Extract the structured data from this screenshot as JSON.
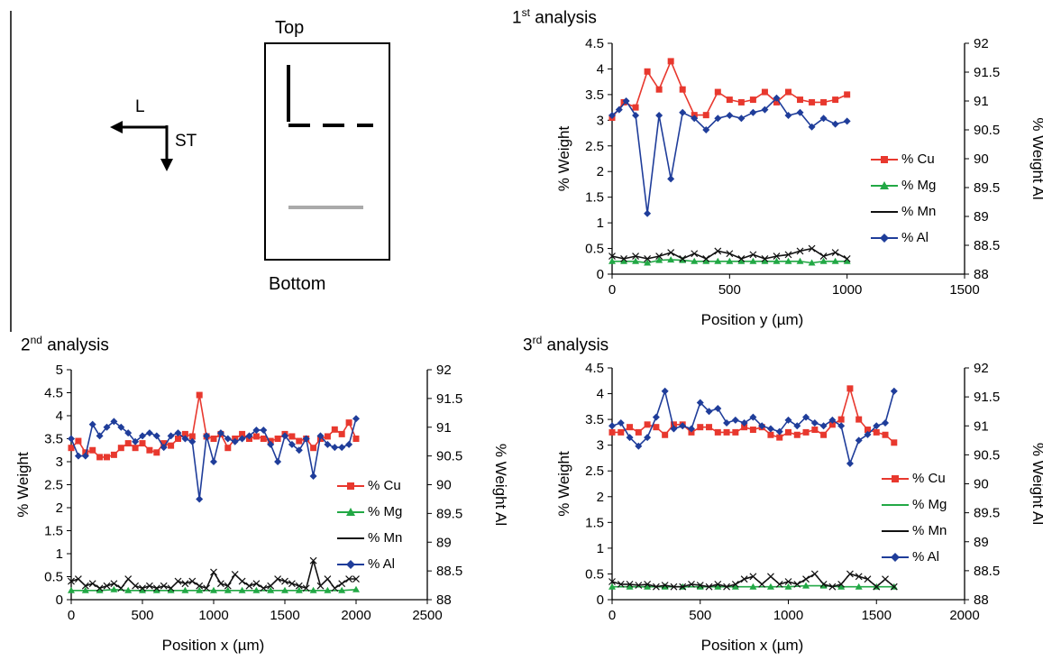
{
  "schematic": {
    "arrow_left_label": "L",
    "arrow_down_label": "ST",
    "top_label": "Top",
    "bottom_label": "Bottom"
  },
  "chart_data": [
    {
      "type": "line",
      "title_prefix": "1",
      "title_sup": "st",
      "title_suffix": " analysis",
      "xlabel": "Position y (µm)",
      "ylabel": "% Weight",
      "y2label": "% Weight Al",
      "xlim": [
        0,
        1500
      ],
      "xticks": [
        0,
        500,
        1000,
        1500
      ],
      "ylim": [
        0,
        4.5
      ],
      "yticks": [
        0,
        0.5,
        1,
        1.5,
        2,
        2.5,
        3,
        3.5,
        4,
        4.5
      ],
      "y2lim": [
        88,
        92
      ],
      "y2ticks": [
        88,
        88.5,
        89,
        89.5,
        90,
        90.5,
        91,
        91.5,
        92
      ],
      "series": [
        {
          "name": "% Cu",
          "axis": "left",
          "color": "#e8382e",
          "marker": "square",
          "x": [
            0,
            50,
            100,
            150,
            200,
            250,
            300,
            350,
            400,
            450,
            500,
            550,
            600,
            650,
            700,
            750,
            800,
            850,
            900,
            950,
            1000
          ],
          "values": [
            3.05,
            3.35,
            3.25,
            3.95,
            3.6,
            4.15,
            3.6,
            3.1,
            3.1,
            3.55,
            3.4,
            3.35,
            3.4,
            3.55,
            3.35,
            3.55,
            3.4,
            3.35,
            3.35,
            3.4,
            3.5
          ]
        },
        {
          "name": "% Mg",
          "axis": "left",
          "color": "#22a845",
          "marker": "triangle",
          "x": [
            0,
            50,
            100,
            150,
            200,
            250,
            300,
            350,
            400,
            450,
            500,
            550,
            600,
            650,
            700,
            750,
            800,
            850,
            900,
            950,
            1000
          ],
          "values": [
            0.25,
            0.25,
            0.25,
            0.22,
            0.27,
            0.28,
            0.27,
            0.25,
            0.25,
            0.25,
            0.25,
            0.25,
            0.25,
            0.25,
            0.25,
            0.25,
            0.25,
            0.22,
            0.25,
            0.25,
            0.25
          ]
        },
        {
          "name": "% Mn",
          "axis": "left",
          "color": "#111111",
          "marker": "cross",
          "x": [
            0,
            50,
            100,
            150,
            200,
            250,
            300,
            350,
            400,
            450,
            500,
            550,
            600,
            650,
            700,
            750,
            800,
            850,
            900,
            950,
            1000
          ],
          "values": [
            0.35,
            0.3,
            0.35,
            0.3,
            0.35,
            0.42,
            0.3,
            0.4,
            0.3,
            0.45,
            0.4,
            0.3,
            0.38,
            0.3,
            0.35,
            0.38,
            0.45,
            0.5,
            0.35,
            0.42,
            0.3
          ]
        },
        {
          "name": "% Al",
          "axis": "right",
          "color": "#1f3d9a",
          "marker": "diamond",
          "x": [
            0,
            30,
            60,
            100,
            150,
            200,
            250,
            300,
            350,
            400,
            450,
            500,
            550,
            600,
            650,
            700,
            750,
            800,
            850,
            900,
            950,
            1000
          ],
          "values": [
            90.75,
            90.85,
            91.0,
            90.75,
            89.05,
            90.75,
            89.65,
            90.8,
            90.7,
            90.5,
            90.7,
            90.75,
            90.7,
            90.8,
            90.85,
            91.05,
            90.75,
            90.8,
            90.55,
            90.7,
            90.6,
            90.65
          ]
        }
      ]
    },
    {
      "type": "line",
      "title_prefix": "2",
      "title_sup": "nd",
      "title_suffix": " analysis",
      "xlabel": "Position x (µm)",
      "ylabel": "% Weight",
      "y2label": "% Weight Al",
      "xlim": [
        0,
        2500
      ],
      "xticks": [
        0,
        500,
        1000,
        1500,
        2000,
        2500
      ],
      "ylim": [
        0,
        5
      ],
      "yticks": [
        0,
        0.5,
        1,
        1.5,
        2,
        2.5,
        3,
        3.5,
        4,
        4.5,
        5
      ],
      "y2lim": [
        88,
        92
      ],
      "y2ticks": [
        88,
        88.5,
        89,
        89.5,
        90,
        90.5,
        91,
        91.5,
        92
      ],
      "series": [
        {
          "name": "% Cu",
          "axis": "left",
          "color": "#e8382e",
          "marker": "square",
          "x": [
            0,
            50,
            100,
            150,
            200,
            250,
            300,
            350,
            400,
            450,
            500,
            550,
            600,
            650,
            700,
            750,
            800,
            850,
            900,
            950,
            1000,
            1050,
            1100,
            1150,
            1200,
            1250,
            1300,
            1350,
            1400,
            1450,
            1500,
            1550,
            1600,
            1650,
            1700,
            1750,
            1800,
            1850,
            1900,
            1950,
            2000
          ],
          "values": [
            3.3,
            3.45,
            3.2,
            3.25,
            3.1,
            3.1,
            3.15,
            3.3,
            3.4,
            3.3,
            3.4,
            3.25,
            3.2,
            3.4,
            3.35,
            3.5,
            3.6,
            3.55,
            4.45,
            3.55,
            3.5,
            3.6,
            3.3,
            3.5,
            3.6,
            3.5,
            3.55,
            3.5,
            3.45,
            3.5,
            3.6,
            3.55,
            3.45,
            3.5,
            3.3,
            3.5,
            3.55,
            3.7,
            3.6,
            3.85,
            3.5
          ]
        },
        {
          "name": "% Mg",
          "axis": "left",
          "color": "#22a845",
          "marker": "triangle",
          "x": [
            0,
            100,
            200,
            300,
            400,
            500,
            600,
            700,
            800,
            900,
            1000,
            1100,
            1200,
            1300,
            1400,
            1500,
            1600,
            1700,
            1800,
            1900,
            2000
          ],
          "values": [
            0.2,
            0.2,
            0.2,
            0.22,
            0.2,
            0.2,
            0.2,
            0.2,
            0.2,
            0.2,
            0.2,
            0.2,
            0.2,
            0.2,
            0.2,
            0.2,
            0.2,
            0.2,
            0.2,
            0.2,
            0.22
          ]
        },
        {
          "name": "% Mn",
          "axis": "left",
          "color": "#111111",
          "marker": "cross",
          "x": [
            0,
            50,
            100,
            150,
            200,
            250,
            300,
            350,
            400,
            450,
            500,
            550,
            600,
            650,
            700,
            750,
            800,
            850,
            900,
            950,
            1000,
            1050,
            1100,
            1150,
            1200,
            1250,
            1300,
            1350,
            1400,
            1450,
            1500,
            1550,
            1600,
            1650,
            1700,
            1750,
            1800,
            1850,
            1900,
            1950,
            2000
          ],
          "values": [
            0.4,
            0.45,
            0.3,
            0.35,
            0.25,
            0.3,
            0.35,
            0.25,
            0.45,
            0.3,
            0.25,
            0.3,
            0.25,
            0.3,
            0.25,
            0.4,
            0.35,
            0.4,
            0.3,
            0.25,
            0.6,
            0.35,
            0.3,
            0.55,
            0.4,
            0.3,
            0.35,
            0.25,
            0.3,
            0.45,
            0.4,
            0.35,
            0.3,
            0.25,
            0.85,
            0.3,
            0.45,
            0.25,
            0.35,
            0.45,
            0.45
          ]
        },
        {
          "name": "% Al",
          "axis": "right",
          "color": "#1f3d9a",
          "marker": "diamond",
          "x": [
            0,
            50,
            100,
            150,
            200,
            250,
            300,
            350,
            400,
            450,
            500,
            550,
            600,
            650,
            700,
            750,
            800,
            850,
            900,
            950,
            1000,
            1050,
            1100,
            1150,
            1200,
            1250,
            1300,
            1350,
            1400,
            1450,
            1500,
            1550,
            1600,
            1650,
            1700,
            1750,
            1800,
            1850,
            1900,
            1950,
            2000
          ],
          "values": [
            90.8,
            90.5,
            90.5,
            91.05,
            90.85,
            91.0,
            91.1,
            91.0,
            90.9,
            90.75,
            90.85,
            90.9,
            90.85,
            90.65,
            90.85,
            90.9,
            90.8,
            90.75,
            89.75,
            90.85,
            90.4,
            90.9,
            90.8,
            90.75,
            90.8,
            90.85,
            90.95,
            90.95,
            90.7,
            90.4,
            90.85,
            90.7,
            90.6,
            90.8,
            90.15,
            90.85,
            90.7,
            90.65,
            90.65,
            90.7,
            91.15
          ]
        }
      ]
    },
    {
      "type": "line",
      "title_prefix": "3",
      "title_sup": "rd",
      "title_suffix": " analysis",
      "xlabel": "Position x (µm)",
      "ylabel": "% Weight",
      "y2label": "% Weight Al",
      "xlim": [
        0,
        2000
      ],
      "xticks": [
        0,
        500,
        1000,
        1500,
        2000
      ],
      "ylim": [
        0,
        4.5
      ],
      "yticks": [
        0,
        0.5,
        1,
        1.5,
        2,
        2.5,
        3,
        3.5,
        4,
        4.5
      ],
      "y2lim": [
        88,
        92
      ],
      "y2ticks": [
        88,
        88.5,
        89,
        89.5,
        90,
        90.5,
        91,
        91.5,
        92
      ],
      "series": [
        {
          "name": "% Cu",
          "axis": "left",
          "color": "#e8382e",
          "marker": "square",
          "x": [
            0,
            50,
            100,
            150,
            200,
            250,
            300,
            350,
            400,
            450,
            500,
            550,
            600,
            650,
            700,
            750,
            800,
            850,
            900,
            950,
            1000,
            1050,
            1100,
            1150,
            1200,
            1250,
            1300,
            1350,
            1400,
            1450,
            1500,
            1550,
            1600
          ],
          "values": [
            3.25,
            3.25,
            3.35,
            3.25,
            3.4,
            3.35,
            3.2,
            3.4,
            3.4,
            3.25,
            3.35,
            3.35,
            3.25,
            3.25,
            3.25,
            3.35,
            3.3,
            3.35,
            3.2,
            3.15,
            3.25,
            3.2,
            3.25,
            3.3,
            3.2,
            3.4,
            3.5,
            4.1,
            3.5,
            3.3,
            3.25,
            3.2,
            3.05
          ]
        },
        {
          "name": "% Mg",
          "axis": "left",
          "color": "#22a845",
          "marker": "triangle",
          "x": [
            0,
            100,
            200,
            300,
            400,
            500,
            600,
            700,
            800,
            900,
            1000,
            1100,
            1200,
            1300,
            1400,
            1500,
            1600
          ],
          "values": [
            0.25,
            0.25,
            0.25,
            0.25,
            0.25,
            0.25,
            0.25,
            0.25,
            0.25,
            0.25,
            0.25,
            0.27,
            0.27,
            0.25,
            0.25,
            0.25,
            0.25
          ]
        },
        {
          "name": "% Mn",
          "axis": "left",
          "color": "#111111",
          "marker": "cross",
          "x": [
            0,
            50,
            100,
            150,
            200,
            250,
            300,
            350,
            400,
            450,
            500,
            550,
            600,
            650,
            700,
            750,
            800,
            850,
            900,
            950,
            1000,
            1050,
            1100,
            1150,
            1200,
            1250,
            1300,
            1350,
            1400,
            1450,
            1500,
            1550,
            1600
          ],
          "values": [
            0.35,
            0.3,
            0.3,
            0.28,
            0.3,
            0.25,
            0.28,
            0.25,
            0.25,
            0.3,
            0.28,
            0.25,
            0.3,
            0.25,
            0.3,
            0.4,
            0.45,
            0.3,
            0.45,
            0.3,
            0.35,
            0.3,
            0.4,
            0.5,
            0.3,
            0.25,
            0.3,
            0.5,
            0.45,
            0.4,
            0.25,
            0.4,
            0.25
          ]
        },
        {
          "name": "% Al",
          "axis": "right",
          "color": "#1f3d9a",
          "marker": "diamond",
          "x": [
            0,
            50,
            100,
            150,
            200,
            250,
            300,
            350,
            400,
            450,
            500,
            550,
            600,
            650,
            700,
            750,
            800,
            850,
            900,
            950,
            1000,
            1050,
            1100,
            1150,
            1200,
            1250,
            1300,
            1350,
            1400,
            1450,
            1500,
            1550,
            1600
          ],
          "values": [
            91.0,
            91.05,
            90.8,
            90.65,
            90.8,
            91.15,
            91.6,
            90.95,
            91.0,
            90.95,
            91.4,
            91.25,
            91.3,
            91.05,
            91.1,
            91.05,
            91.15,
            91.0,
            90.95,
            90.9,
            91.1,
            91.0,
            91.15,
            91.05,
            91.0,
            91.1,
            91.0,
            90.35,
            90.75,
            90.85,
            91.0,
            91.05,
            91.6
          ]
        }
      ]
    }
  ]
}
